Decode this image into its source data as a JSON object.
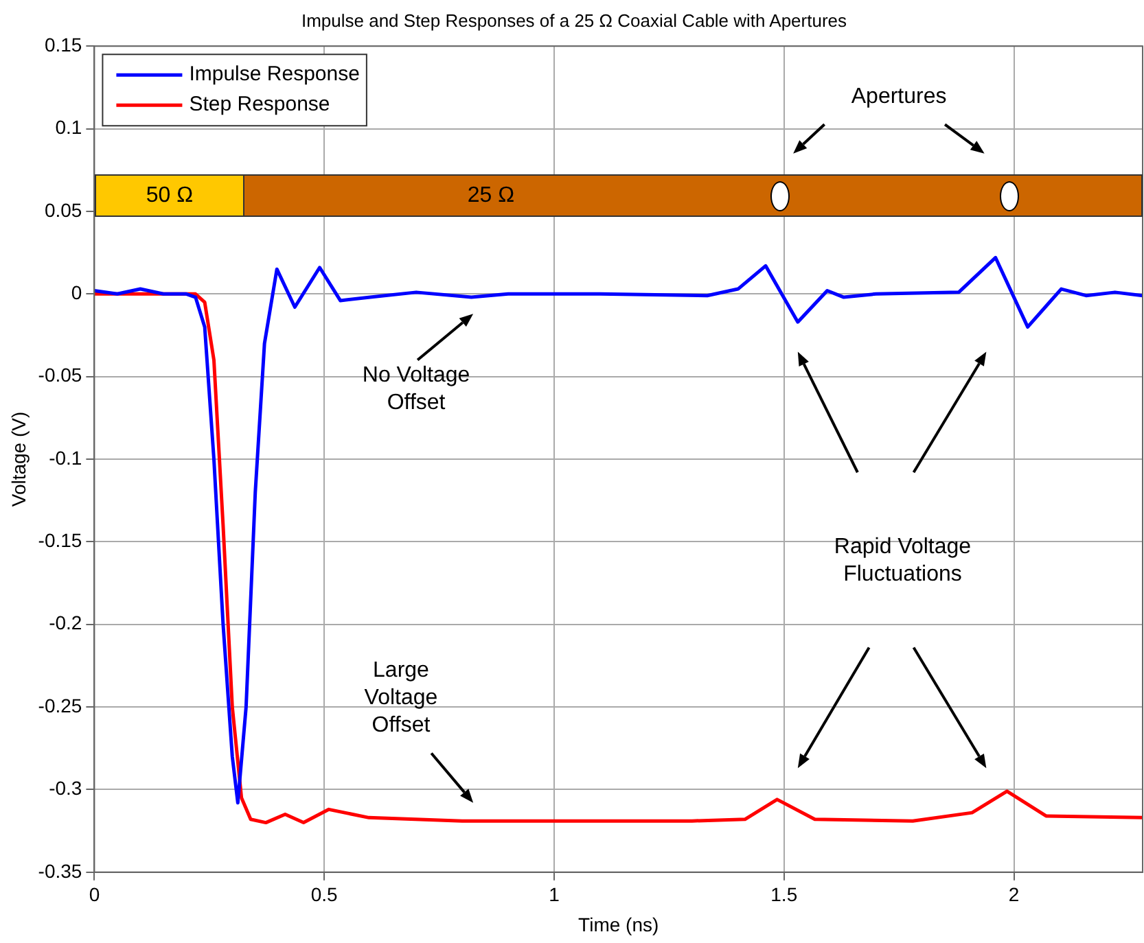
{
  "chart_data": {
    "type": "line",
    "title": "Impulse and Step Responses of a 25 Ω Coaxial Cable with Apertures",
    "xlabel": "Time (ns)",
    "ylabel": "Voltage (V)",
    "xlim": [
      0,
      2.28
    ],
    "xticks": [
      0,
      0.5,
      1,
      1.5,
      2
    ],
    "ylim": [
      -0.35,
      0.15
    ],
    "yticks": [
      -0.35,
      -0.3,
      -0.25,
      -0.2,
      -0.15,
      -0.1,
      -0.05,
      0,
      0.05,
      0.1,
      0.15
    ],
    "grid": true,
    "legend": "top left",
    "line_style": "solid",
    "marker": "none",
    "annotations": [
      "Apertures",
      "50 Ω",
      "25 Ω",
      "No Voltage Offset",
      "Large Voltage Offset",
      "Rapid Voltage Fluctuations"
    ],
    "series": [
      {
        "name": "Impulse Response",
        "color": "#0000ff",
        "x": [
          0,
          0.05,
          0.1,
          0.15,
          0.2,
          0.22,
          0.24,
          0.26,
          0.28,
          0.3,
          0.312,
          0.33,
          0.35,
          0.37,
          0.397,
          0.436,
          0.49,
          0.535,
          0.6,
          0.7,
          0.82,
          0.9,
          1.1,
          1.333,
          1.4,
          1.46,
          1.53,
          1.594,
          1.63,
          1.7,
          1.88,
          1.96,
          2.03,
          2.103,
          2.157,
          2.22,
          2.28
        ],
        "values": [
          0.002,
          0,
          0.003,
          0,
          0,
          -0.002,
          -0.02,
          -0.1,
          -0.2,
          -0.28,
          -0.308,
          -0.25,
          -0.12,
          -0.03,
          0.015,
          -0.008,
          0.016,
          -0.004,
          -0.002,
          0.001,
          -0.002,
          0,
          0,
          -0.001,
          0.003,
          0.017,
          -0.017,
          0.002,
          -0.002,
          0,
          0.001,
          0.022,
          -0.02,
          0.003,
          -0.001,
          0.001,
          -0.001
        ]
      },
      {
        "name": "Step Response",
        "color": "#ff0000",
        "x": [
          0,
          0.1,
          0.22,
          0.24,
          0.26,
          0.28,
          0.3,
          0.32,
          0.34,
          0.373,
          0.415,
          0.455,
          0.51,
          0.597,
          0.8,
          1,
          1.3,
          1.415,
          1.485,
          1.567,
          1.78,
          1.909,
          1.985,
          2.07,
          2.28
        ],
        "values": [
          0,
          0,
          0,
          -0.005,
          -0.04,
          -0.14,
          -0.25,
          -0.305,
          -0.318,
          -0.32,
          -0.315,
          -0.32,
          -0.312,
          -0.317,
          -0.319,
          -0.319,
          -0.319,
          -0.318,
          -0.306,
          -0.318,
          -0.319,
          -0.314,
          -0.301,
          -0.316,
          -0.317
        ]
      }
    ]
  }
}
